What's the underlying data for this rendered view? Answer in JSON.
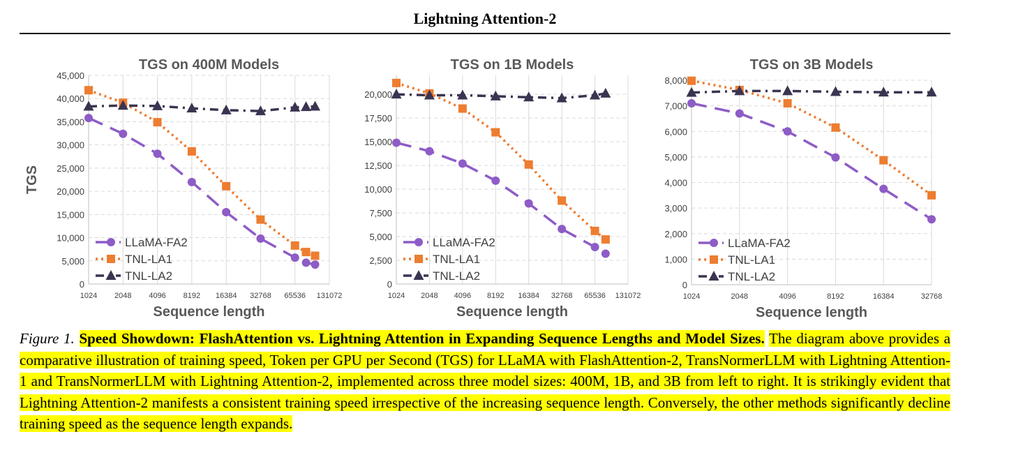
{
  "header": {
    "title": "Lightning Attention-2"
  },
  "caption": {
    "label": "Figure 1.",
    "title": "Speed Showdown: FlashAttention vs. Lightning Attention in Expanding Sequence Lengths and Model Sizes.",
    "body": "The diagram above provides a comparative illustration of training speed, Token per GPU per Second (TGS) for LLaMA with FlashAttention-2, TransNormerLLM with Lightning Attention-1 and TransNormerLLM with Lightning Attention-2, implemented across three model sizes: 400M, 1B, and 3B from left to right. It is strikingly evident that Lightning Attention-2 manifests a consistent training speed irrespective of the increasing sequence length. Conversely, the other methods significantly decline training speed as the sequence length expands."
  },
  "colors": {
    "llama": "#8e5cc6",
    "la1": "#ed7d31",
    "la2": "#3b3451",
    "highlight": "#ffff00"
  },
  "chart_data": [
    {
      "type": "line",
      "title": "TGS on 400M Models",
      "xlabel": "Sequence length",
      "ylabel": "TGS",
      "x_scale": "log2",
      "x_ticks": [
        1024,
        2048,
        4096,
        8192,
        16384,
        32768,
        65536,
        131072
      ],
      "ylim": [
        0,
        45000
      ],
      "y_ticks": [
        "0",
        "5,000",
        "10,000",
        "15,000",
        "20,000",
        "25,000",
        "30,000",
        "35,000",
        "40,000",
        "45,000"
      ],
      "legend": "bottom-left",
      "series": [
        {
          "name": "LLaMA-FA2",
          "marker": "circle",
          "x": [
            1024,
            2048,
            4096,
            8192,
            16384,
            32768,
            65536,
            81920,
            98304
          ],
          "y": [
            35800,
            32400,
            28100,
            22000,
            15500,
            9800,
            5700,
            4600,
            4200
          ]
        },
        {
          "name": "TNL-LA1",
          "marker": "square",
          "x": [
            1024,
            2048,
            4096,
            8192,
            16384,
            32768,
            65536,
            81920,
            98304
          ],
          "y": [
            41800,
            39100,
            34900,
            28600,
            21100,
            13900,
            8300,
            6900,
            6100
          ]
        },
        {
          "name": "TNL-LA2",
          "marker": "triangle",
          "x": [
            1024,
            2048,
            4096,
            8192,
            16384,
            32768,
            65536,
            81920,
            98304
          ],
          "y": [
            38300,
            38500,
            38400,
            37900,
            37500,
            37300,
            38100,
            38200,
            38300
          ]
        }
      ]
    },
    {
      "type": "line",
      "title": "TGS on 1B Models",
      "xlabel": "Sequence length",
      "ylabel": "",
      "x_scale": "log2",
      "x_ticks": [
        1024,
        2048,
        4096,
        8192,
        16384,
        32768,
        65536,
        131072
      ],
      "ylim": [
        0,
        22000
      ],
      "y_ticks": [
        "0",
        "2,500",
        "5,000",
        "7,500",
        "10,000",
        "12,500",
        "15,000",
        "17,500",
        "20,000"
      ],
      "legend": "bottom-left",
      "series": [
        {
          "name": "LLaMA-FA2",
          "marker": "circle",
          "x": [
            1024,
            2048,
            4096,
            8192,
            16384,
            32768,
            65536,
            81920
          ],
          "y": [
            14900,
            14000,
            12700,
            10900,
            8500,
            5800,
            3900,
            3200
          ]
        },
        {
          "name": "TNL-LA1",
          "marker": "square",
          "x": [
            1024,
            2048,
            4096,
            8192,
            16384,
            32768,
            65536,
            81920
          ],
          "y": [
            21200,
            20100,
            18500,
            16000,
            12600,
            8800,
            5600,
            4700
          ]
        },
        {
          "name": "TNL-LA2",
          "marker": "triangle",
          "x": [
            1024,
            2048,
            4096,
            8192,
            16384,
            32768,
            65536,
            81920
          ],
          "y": [
            20000,
            19900,
            19900,
            19800,
            19700,
            19600,
            19900,
            20100
          ]
        }
      ]
    },
    {
      "type": "line",
      "title": "TGS on 3B Models",
      "xlabel": "Sequence length",
      "ylabel": "",
      "x_scale": "log2",
      "x_ticks": [
        1024,
        2048,
        4096,
        8192,
        16384,
        32768
      ],
      "ylim": [
        0,
        8000
      ],
      "y_ticks": [
        "0",
        "1,000",
        "2,000",
        "3,000",
        "4,000",
        "5,000",
        "6,000",
        "7,000",
        "8,000"
      ],
      "legend": "bottom-left",
      "series": [
        {
          "name": "LLaMA-FA2",
          "marker": "circle",
          "x": [
            1024,
            2048,
            4096,
            8192,
            16384,
            32768
          ],
          "y": [
            7100,
            6700,
            6000,
            4980,
            3750,
            2560
          ]
        },
        {
          "name": "TNL-LA1",
          "marker": "square",
          "x": [
            1024,
            2048,
            4096,
            8192,
            16384,
            32768
          ],
          "y": [
            7980,
            7620,
            7100,
            6150,
            4870,
            3500
          ]
        },
        {
          "name": "TNL-LA2",
          "marker": "triangle",
          "x": [
            1024,
            2048,
            4096,
            8192,
            16384,
            32768
          ],
          "y": [
            7520,
            7580,
            7580,
            7550,
            7530,
            7530
          ]
        }
      ]
    }
  ]
}
